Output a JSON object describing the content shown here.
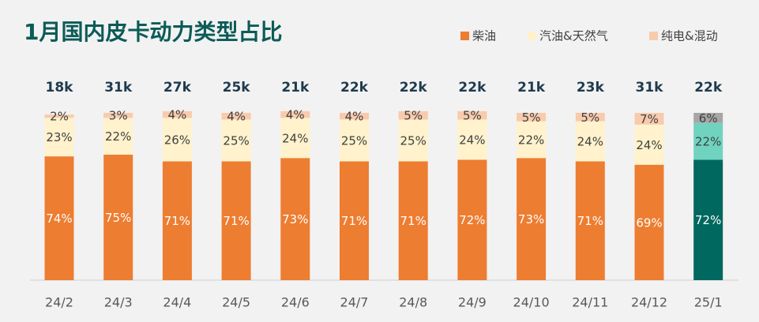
{
  "chart_data": {
    "type": "stacked_bar_100",
    "title": "1月国内皮卡动力类型占比",
    "categories": [
      "24/2",
      "24/3",
      "24/4",
      "24/5",
      "24/6",
      "24/7",
      "24/8",
      "24/9",
      "24/10",
      "24/11",
      "24/12",
      "25/1"
    ],
    "ylim": [
      0,
      100
    ],
    "totals": [
      18000,
      31000,
      27000,
      25000,
      21000,
      22000,
      22000,
      22000,
      21000,
      23000,
      31000,
      22000
    ],
    "total_labels": [
      "18k",
      "31k",
      "27k",
      "25k",
      "21k",
      "22k",
      "22k",
      "22k",
      "21k",
      "23k",
      "31k",
      "22k"
    ],
    "series": [
      {
        "name": "柴油",
        "color": "#ED7D31",
        "colors": [
          "#ED7D31",
          "#ED7D31",
          "#ED7D31",
          "#ED7D31",
          "#ED7D31",
          "#ED7D31",
          "#ED7D31",
          "#ED7D31",
          "#ED7D31",
          "#ED7D31",
          "#ED7D31",
          "#00685F"
        ],
        "values": [
          74,
          75,
          71,
          71,
          73,
          71,
          71,
          72,
          73,
          71,
          69,
          72
        ],
        "value_labels": [
          "74%",
          "75%",
          "71%",
          "71%",
          "73%",
          "71%",
          "71%",
          "72%",
          "73%",
          "71%",
          "69%",
          "72%"
        ]
      },
      {
        "name": "汽油&天然气",
        "color": "#FFF2CC",
        "colors": [
          "#FFF2CC",
          "#FFF2CC",
          "#FFF2CC",
          "#FFF2CC",
          "#FFF2CC",
          "#FFF2CC",
          "#FFF2CC",
          "#FFF2CC",
          "#FFF2CC",
          "#FFF2CC",
          "#FFF2CC",
          "#6FD3BF"
        ],
        "values": [
          23,
          22,
          26,
          25,
          24,
          25,
          25,
          24,
          22,
          24,
          24,
          22
        ],
        "value_labels": [
          "23%",
          "22%",
          "26%",
          "25%",
          "24%",
          "25%",
          "25%",
          "24%",
          "22%",
          "24%",
          "24%",
          "22%"
        ]
      },
      {
        "name": "纯电&混动",
        "color": "#F8CBAD",
        "colors": [
          "#F8CBAD",
          "#F8CBAD",
          "#F8CBAD",
          "#F8CBAD",
          "#F8CBAD",
          "#F8CBAD",
          "#F8CBAD",
          "#F8CBAD",
          "#F8CBAD",
          "#F8CBAD",
          "#F8CBAD",
          "#A6A6A6"
        ],
        "values": [
          2,
          3,
          4,
          4,
          4,
          4,
          5,
          5,
          5,
          5,
          7,
          6
        ],
        "value_labels": [
          "2%",
          "3%",
          "4%",
          "4%",
          "4%",
          "4%",
          "5%",
          "5%",
          "5%",
          "5%",
          "7%",
          "6%"
        ]
      }
    ]
  }
}
